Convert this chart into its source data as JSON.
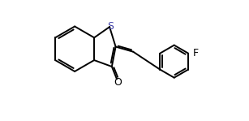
{
  "bg_color": "#ffffff",
  "line_color": "#000000",
  "fig_width": 3.07,
  "fig_height": 1.49,
  "dpi": 100,
  "lw": 1.4,
  "F_label": "F",
  "S_label": "S",
  "O_label": "O",
  "font_size": 9
}
